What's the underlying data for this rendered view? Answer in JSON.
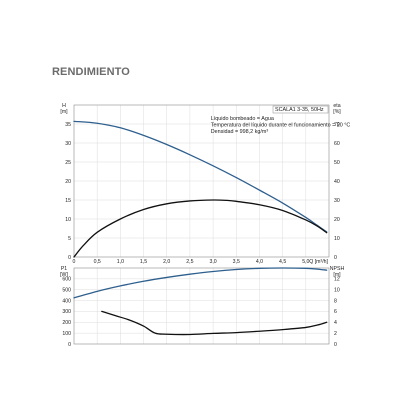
{
  "heading": "RENDIMIENTO",
  "chart_data": [
    {
      "type": "line",
      "model_label": "SCALA1 3-35, 50Hz",
      "notes": [
        "Líquido bombeado = Agua",
        "Temperatura del líquido durante el funcionamiento = 20 °C",
        "Densidad = 998,2 kg/m³"
      ],
      "xlabel": "Q [m³/h]",
      "xlim": [
        0,
        5.5
      ],
      "xticks": [
        0,
        0.5,
        1.0,
        1.5,
        2.0,
        2.5,
        3.0,
        3.5,
        4.0,
        4.5,
        5.0
      ],
      "xtick_labels": [
        "0",
        "0,5",
        "1,0",
        "1,5",
        "2,0",
        "2,5",
        "3,0",
        "3,5",
        "4,0",
        "4,5",
        "5,0"
      ],
      "y_left": {
        "label_top": "H",
        "label_unit": "[m]",
        "lim": [
          0,
          40
        ],
        "ticks": [
          0,
          5,
          10,
          15,
          20,
          25,
          30,
          35
        ]
      },
      "y_right": {
        "label_top": "eta",
        "label_unit": "[%]",
        "lim": [
          0,
          80
        ],
        "ticks": [
          0,
          10,
          20,
          30,
          40,
          50,
          60,
          70
        ]
      },
      "grid": true,
      "series": [
        {
          "axis": "left",
          "color": "#2e5f8e",
          "x": [
            0,
            0.5,
            1.0,
            1.5,
            2.0,
            2.5,
            3.0,
            3.5,
            4.0,
            4.5,
            5.0,
            5.25,
            5.45
          ],
          "y": [
            35.7,
            35.2,
            34.0,
            32.0,
            29.6,
            26.9,
            24.0,
            20.9,
            17.6,
            14.2,
            10.4,
            8.3,
            6.6
          ]
        },
        {
          "axis": "right",
          "color": "#111111",
          "x": [
            0,
            0.2,
            0.5,
            1.0,
            1.5,
            2.0,
            2.5,
            3.0,
            3.3,
            3.5,
            4.0,
            4.5,
            5.0,
            5.25,
            5.45
          ],
          "y": [
            0,
            6,
            13,
            20,
            25,
            28,
            29.5,
            30,
            29.8,
            29.3,
            27.5,
            24.5,
            19.5,
            16.2,
            12.8
          ]
        }
      ]
    },
    {
      "type": "line",
      "xlim": [
        0,
        5.5
      ],
      "xticks": [
        0,
        0.5,
        1.0,
        1.5,
        2.0,
        2.5,
        3.0,
        3.5,
        4.0,
        4.5,
        5.0
      ],
      "grid": true,
      "y_left": {
        "label_top": "P1",
        "label_unit": "[W]",
        "lim": [
          0,
          700
        ],
        "ticks": [
          0,
          100,
          200,
          300,
          400,
          500,
          600
        ]
      },
      "y_right": {
        "label_top": "NPSH",
        "label_unit": "[m]",
        "lim": [
          0,
          14
        ],
        "ticks": [
          0,
          2,
          4,
          6,
          8,
          10,
          12
        ]
      },
      "series": [
        {
          "axis": "left",
          "color": "#2e5f8e",
          "x": [
            0,
            0.5,
            1.0,
            1.5,
            2.0,
            2.5,
            3.0,
            3.5,
            4.0,
            4.5,
            5.0,
            5.25,
            5.45
          ],
          "y": [
            425,
            485,
            535,
            578,
            613,
            643,
            668,
            686,
            697,
            700,
            697,
            690,
            680
          ]
        },
        {
          "axis": "right",
          "color": "#111111",
          "x": [
            0.6,
            0.9,
            1.2,
            1.5,
            1.75,
            2.0,
            2.5,
            3.0,
            3.5,
            4.0,
            4.5,
            5.0,
            5.25,
            5.45
          ],
          "y": [
            6.0,
            5.2,
            4.4,
            3.3,
            2.0,
            1.8,
            1.75,
            1.95,
            2.1,
            2.35,
            2.65,
            3.05,
            3.5,
            4.0
          ]
        }
      ]
    }
  ]
}
